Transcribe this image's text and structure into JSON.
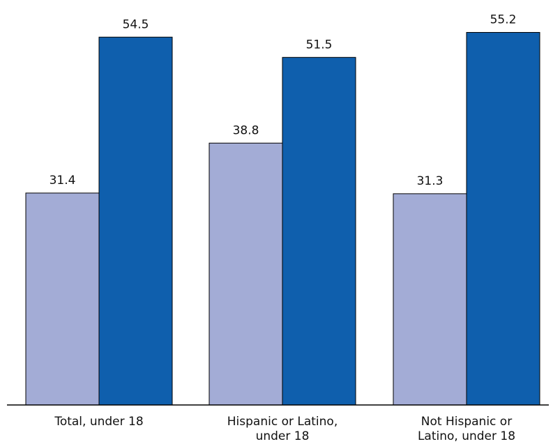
{
  "chart_data": {
    "type": "bar",
    "categories": [
      [
        "Total, under 18"
      ],
      [
        "Hispanic or Latino,",
        "under 18"
      ],
      [
        "Not Hispanic or",
        "Latino, under 18"
      ]
    ],
    "series": [
      {
        "values": [
          31.4,
          38.8,
          31.3
        ],
        "color": "#a3acd6"
      },
      {
        "values": [
          54.5,
          51.5,
          55.2
        ],
        "color": "#0f5fad"
      }
    ],
    "value_labels": [
      [
        "31.4",
        "38.8",
        "31.3"
      ],
      [
        "54.5",
        "51.5",
        "55.2"
      ]
    ],
    "ylim": [
      0,
      60
    ],
    "grid": false,
    "legend": "none"
  }
}
